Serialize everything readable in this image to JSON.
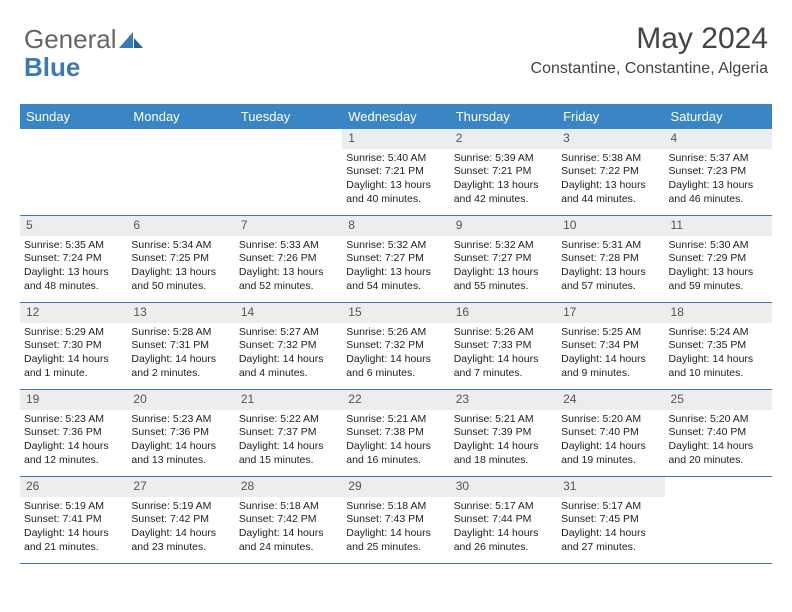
{
  "logo": {
    "part1": "General",
    "part2": "Blue"
  },
  "title": "May 2024",
  "location": "Constantine, Constantine, Algeria",
  "weekdays": [
    "Sunday",
    "Monday",
    "Tuesday",
    "Wednesday",
    "Thursday",
    "Friday",
    "Saturday"
  ],
  "header_bg": "#3a85c4",
  "daynum_bg": "#ecedef",
  "border_color": "#3a7ab8",
  "weeks": [
    [
      {
        "n": "",
        "sr": "",
        "ss": "",
        "dl": ""
      },
      {
        "n": "",
        "sr": "",
        "ss": "",
        "dl": ""
      },
      {
        "n": "",
        "sr": "",
        "ss": "",
        "dl": ""
      },
      {
        "n": "1",
        "sr": "Sunrise: 5:40 AM",
        "ss": "Sunset: 7:21 PM",
        "dl": "Daylight: 13 hours and 40 minutes."
      },
      {
        "n": "2",
        "sr": "Sunrise: 5:39 AM",
        "ss": "Sunset: 7:21 PM",
        "dl": "Daylight: 13 hours and 42 minutes."
      },
      {
        "n": "3",
        "sr": "Sunrise: 5:38 AM",
        "ss": "Sunset: 7:22 PM",
        "dl": "Daylight: 13 hours and 44 minutes."
      },
      {
        "n": "4",
        "sr": "Sunrise: 5:37 AM",
        "ss": "Sunset: 7:23 PM",
        "dl": "Daylight: 13 hours and 46 minutes."
      }
    ],
    [
      {
        "n": "5",
        "sr": "Sunrise: 5:35 AM",
        "ss": "Sunset: 7:24 PM",
        "dl": "Daylight: 13 hours and 48 minutes."
      },
      {
        "n": "6",
        "sr": "Sunrise: 5:34 AM",
        "ss": "Sunset: 7:25 PM",
        "dl": "Daylight: 13 hours and 50 minutes."
      },
      {
        "n": "7",
        "sr": "Sunrise: 5:33 AM",
        "ss": "Sunset: 7:26 PM",
        "dl": "Daylight: 13 hours and 52 minutes."
      },
      {
        "n": "8",
        "sr": "Sunrise: 5:32 AM",
        "ss": "Sunset: 7:27 PM",
        "dl": "Daylight: 13 hours and 54 minutes."
      },
      {
        "n": "9",
        "sr": "Sunrise: 5:32 AM",
        "ss": "Sunset: 7:27 PM",
        "dl": "Daylight: 13 hours and 55 minutes."
      },
      {
        "n": "10",
        "sr": "Sunrise: 5:31 AM",
        "ss": "Sunset: 7:28 PM",
        "dl": "Daylight: 13 hours and 57 minutes."
      },
      {
        "n": "11",
        "sr": "Sunrise: 5:30 AM",
        "ss": "Sunset: 7:29 PM",
        "dl": "Daylight: 13 hours and 59 minutes."
      }
    ],
    [
      {
        "n": "12",
        "sr": "Sunrise: 5:29 AM",
        "ss": "Sunset: 7:30 PM",
        "dl": "Daylight: 14 hours and 1 minute."
      },
      {
        "n": "13",
        "sr": "Sunrise: 5:28 AM",
        "ss": "Sunset: 7:31 PM",
        "dl": "Daylight: 14 hours and 2 minutes."
      },
      {
        "n": "14",
        "sr": "Sunrise: 5:27 AM",
        "ss": "Sunset: 7:32 PM",
        "dl": "Daylight: 14 hours and 4 minutes."
      },
      {
        "n": "15",
        "sr": "Sunrise: 5:26 AM",
        "ss": "Sunset: 7:32 PM",
        "dl": "Daylight: 14 hours and 6 minutes."
      },
      {
        "n": "16",
        "sr": "Sunrise: 5:26 AM",
        "ss": "Sunset: 7:33 PM",
        "dl": "Daylight: 14 hours and 7 minutes."
      },
      {
        "n": "17",
        "sr": "Sunrise: 5:25 AM",
        "ss": "Sunset: 7:34 PM",
        "dl": "Daylight: 14 hours and 9 minutes."
      },
      {
        "n": "18",
        "sr": "Sunrise: 5:24 AM",
        "ss": "Sunset: 7:35 PM",
        "dl": "Daylight: 14 hours and 10 minutes."
      }
    ],
    [
      {
        "n": "19",
        "sr": "Sunrise: 5:23 AM",
        "ss": "Sunset: 7:36 PM",
        "dl": "Daylight: 14 hours and 12 minutes."
      },
      {
        "n": "20",
        "sr": "Sunrise: 5:23 AM",
        "ss": "Sunset: 7:36 PM",
        "dl": "Daylight: 14 hours and 13 minutes."
      },
      {
        "n": "21",
        "sr": "Sunrise: 5:22 AM",
        "ss": "Sunset: 7:37 PM",
        "dl": "Daylight: 14 hours and 15 minutes."
      },
      {
        "n": "22",
        "sr": "Sunrise: 5:21 AM",
        "ss": "Sunset: 7:38 PM",
        "dl": "Daylight: 14 hours and 16 minutes."
      },
      {
        "n": "23",
        "sr": "Sunrise: 5:21 AM",
        "ss": "Sunset: 7:39 PM",
        "dl": "Daylight: 14 hours and 18 minutes."
      },
      {
        "n": "24",
        "sr": "Sunrise: 5:20 AM",
        "ss": "Sunset: 7:40 PM",
        "dl": "Daylight: 14 hours and 19 minutes."
      },
      {
        "n": "25",
        "sr": "Sunrise: 5:20 AM",
        "ss": "Sunset: 7:40 PM",
        "dl": "Daylight: 14 hours and 20 minutes."
      }
    ],
    [
      {
        "n": "26",
        "sr": "Sunrise: 5:19 AM",
        "ss": "Sunset: 7:41 PM",
        "dl": "Daylight: 14 hours and 21 minutes."
      },
      {
        "n": "27",
        "sr": "Sunrise: 5:19 AM",
        "ss": "Sunset: 7:42 PM",
        "dl": "Daylight: 14 hours and 23 minutes."
      },
      {
        "n": "28",
        "sr": "Sunrise: 5:18 AM",
        "ss": "Sunset: 7:42 PM",
        "dl": "Daylight: 14 hours and 24 minutes."
      },
      {
        "n": "29",
        "sr": "Sunrise: 5:18 AM",
        "ss": "Sunset: 7:43 PM",
        "dl": "Daylight: 14 hours and 25 minutes."
      },
      {
        "n": "30",
        "sr": "Sunrise: 5:17 AM",
        "ss": "Sunset: 7:44 PM",
        "dl": "Daylight: 14 hours and 26 minutes."
      },
      {
        "n": "31",
        "sr": "Sunrise: 5:17 AM",
        "ss": "Sunset: 7:45 PM",
        "dl": "Daylight: 14 hours and 27 minutes."
      },
      {
        "n": "",
        "sr": "",
        "ss": "",
        "dl": ""
      }
    ]
  ]
}
